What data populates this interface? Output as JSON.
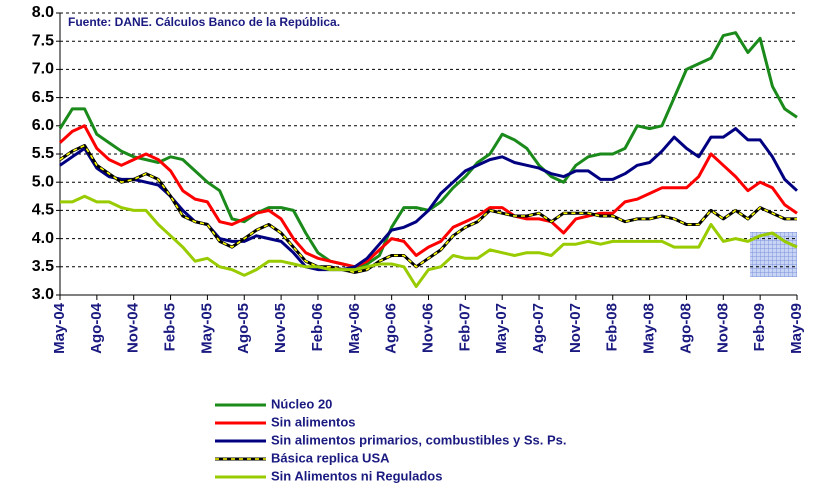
{
  "chart_data": {
    "type": "line",
    "annotation": "Fuente: DANE. Cálculos Banco de la República.",
    "categories": [
      "May-04",
      null,
      null,
      "Ago-04",
      null,
      null,
      "Nov-04",
      null,
      null,
      "Feb-05",
      null,
      null,
      "May-05",
      null,
      null,
      "Ago-05",
      null,
      null,
      "Nov-05",
      null,
      null,
      "Feb-06",
      null,
      null,
      "May-06",
      null,
      null,
      "Ago-06",
      null,
      null,
      "Nov-06",
      null,
      null,
      "Feb-07",
      null,
      null,
      "May-07",
      null,
      null,
      "Ago-07",
      null,
      null,
      "Nov-07",
      null,
      null,
      "Feb-08",
      null,
      null,
      "May-08",
      null,
      null,
      "Ago-08",
      null,
      null,
      "Nov-08",
      null,
      null,
      "Feb-09",
      null,
      null,
      "May-09"
    ],
    "ylim": [
      3.0,
      8.0
    ],
    "yticks": [
      {
        "value": 3,
        "label": "3.0"
      },
      {
        "value": 3.5,
        "label": "3.5"
      },
      {
        "value": 4,
        "label": "4.0"
      },
      {
        "value": 4.5,
        "label": "4.5"
      },
      {
        "value": 5,
        "label": "5.0"
      },
      {
        "value": 5.5,
        "label": "5.5"
      },
      {
        "value": 6,
        "label": "6.0"
      },
      {
        "value": 6.5,
        "label": "6.5"
      },
      {
        "value": 7,
        "label": "7.0"
      },
      {
        "value": 7.5,
        "label": "7.5"
      },
      {
        "value": 8,
        "label": "8.0"
      }
    ],
    "grid": true,
    "series": [
      {
        "name": "Núcleo 20",
        "color": "#1a8a1a",
        "values": [
          5.95,
          6.3,
          6.3,
          5.85,
          5.7,
          5.55,
          5.45,
          5.4,
          5.35,
          5.45,
          5.4,
          5.2,
          5.0,
          4.85,
          4.35,
          4.3,
          4.45,
          4.55,
          4.55,
          4.5,
          4.1,
          3.75,
          3.6,
          3.55,
          3.5,
          3.55,
          3.7,
          4.2,
          4.55,
          4.55,
          4.5,
          4.65,
          4.9,
          5.1,
          5.35,
          5.5,
          5.85,
          5.75,
          5.6,
          5.3,
          5.1,
          5.0,
          5.3,
          5.45,
          5.5,
          5.5,
          5.6,
          6.0,
          5.95,
          6.0,
          6.5,
          7.0,
          7.1,
          7.2,
          7.6,
          7.65,
          7.3,
          7.55,
          6.7,
          6.3,
          6.15
        ]
      },
      {
        "name": "Sin alimentos",
        "color": "#ff0000",
        "values": [
          5.7,
          5.9,
          6.0,
          5.6,
          5.4,
          5.3,
          5.4,
          5.5,
          5.4,
          5.2,
          4.85,
          4.7,
          4.65,
          4.3,
          4.25,
          4.35,
          4.45,
          4.5,
          4.35,
          4.0,
          3.75,
          3.65,
          3.6,
          3.55,
          3.5,
          3.6,
          3.8,
          4.0,
          3.95,
          3.7,
          3.85,
          3.95,
          4.2,
          4.3,
          4.4,
          4.55,
          4.55,
          4.4,
          4.35,
          4.35,
          4.3,
          4.1,
          4.35,
          4.4,
          4.45,
          4.45,
          4.65,
          4.7,
          4.8,
          4.9,
          4.9,
          4.9,
          5.1,
          5.5,
          5.3,
          5.1,
          4.85,
          5.0,
          4.9,
          4.6,
          4.45
        ]
      },
      {
        "name": "Sin alimentos primarios, combustibles y Ss. Ps.",
        "color": "#000080",
        "values": [
          5.3,
          5.45,
          5.6,
          5.25,
          5.1,
          5.05,
          5.05,
          5.0,
          4.95,
          4.75,
          4.5,
          4.3,
          4.25,
          4.0,
          3.95,
          3.95,
          4.05,
          4.0,
          3.95,
          3.75,
          3.5,
          3.45,
          3.45,
          3.45,
          3.5,
          3.65,
          3.9,
          4.15,
          4.2,
          4.3,
          4.5,
          4.8,
          5.0,
          5.2,
          5.3,
          5.4,
          5.45,
          5.35,
          5.3,
          5.25,
          5.15,
          5.1,
          5.2,
          5.2,
          5.05,
          5.05,
          5.15,
          5.3,
          5.35,
          5.55,
          5.8,
          5.6,
          5.45,
          5.8,
          5.8,
          5.95,
          5.75,
          5.75,
          5.45,
          5.05,
          4.85
        ]
      },
      {
        "name": "Básica replica USA",
        "color": "#000000",
        "dash_color": "#ffff00",
        "values": [
          5.4,
          5.55,
          5.65,
          5.3,
          5.15,
          5.0,
          5.05,
          5.15,
          5.05,
          4.75,
          4.4,
          4.3,
          4.25,
          3.95,
          3.85,
          4.0,
          4.15,
          4.25,
          4.1,
          3.85,
          3.6,
          3.5,
          3.5,
          3.45,
          3.4,
          3.45,
          3.6,
          3.7,
          3.7,
          3.5,
          3.65,
          3.8,
          4.05,
          4.2,
          4.3,
          4.5,
          4.45,
          4.4,
          4.4,
          4.45,
          4.3,
          4.45,
          4.45,
          4.45,
          4.4,
          4.4,
          4.3,
          4.35,
          4.35,
          4.4,
          4.35,
          4.25,
          4.25,
          4.5,
          4.35,
          4.5,
          4.35,
          4.55,
          4.45,
          4.35,
          4.35
        ]
      },
      {
        "name": "Sin Alimentos ni Regulados",
        "color": "#99cc00",
        "values": [
          4.65,
          4.65,
          4.75,
          4.65,
          4.65,
          4.55,
          4.5,
          4.5,
          4.25,
          4.05,
          3.85,
          3.6,
          3.65,
          3.5,
          3.45,
          3.35,
          3.45,
          3.6,
          3.6,
          3.55,
          3.5,
          3.5,
          3.45,
          3.45,
          3.45,
          3.5,
          3.55,
          3.55,
          3.5,
          3.15,
          3.45,
          3.5,
          3.7,
          3.65,
          3.65,
          3.8,
          3.75,
          3.7,
          3.75,
          3.75,
          3.7,
          3.9,
          3.9,
          3.95,
          3.9,
          3.95,
          3.95,
          3.95,
          3.95,
          3.95,
          3.85,
          3.85,
          3.85,
          4.25,
          3.95,
          4.0,
          3.95,
          4.05,
          4.1,
          3.95,
          3.85
        ]
      }
    ]
  }
}
